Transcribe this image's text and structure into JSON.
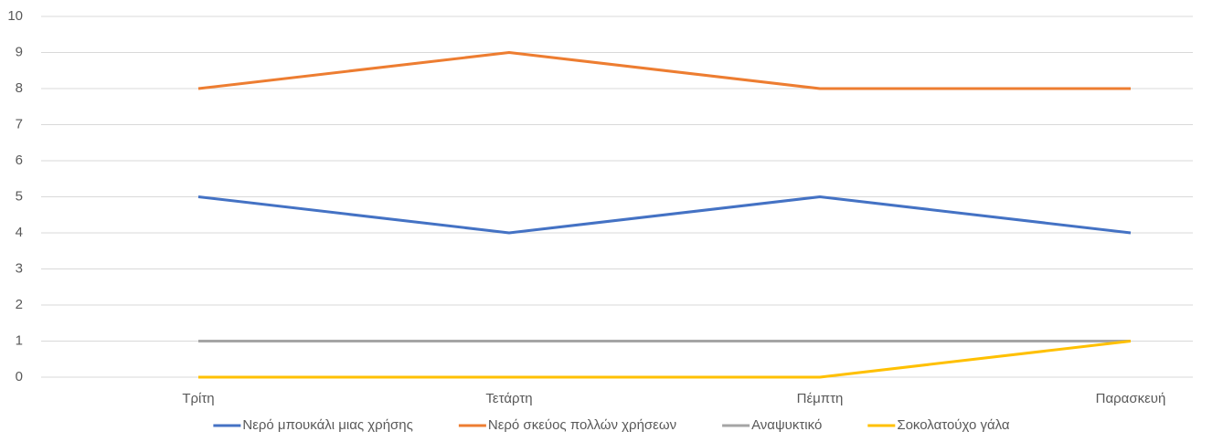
{
  "chart_data": {
    "type": "line",
    "categories": [
      "Τρίτη",
      "Τετάρτη",
      "Πέμπτη",
      "Παρασκευή"
    ],
    "series": [
      {
        "name": "Νερό μπουκάλι μιας χρήσης",
        "color": "#4472c4",
        "values": [
          5,
          4,
          5,
          4
        ]
      },
      {
        "name": "Νερό σκεύος πολλών χρήσεων",
        "color": "#ed7d31",
        "values": [
          8,
          9,
          8,
          8
        ]
      },
      {
        "name": "Αναψυκτικό",
        "color": "#a5a5a5",
        "values": [
          1,
          1,
          1,
          1
        ]
      },
      {
        "name": "Σοκολατούχο γάλα",
        "color": "#ffc000",
        "values": [
          0,
          0,
          0,
          1
        ]
      }
    ],
    "ylim": [
      0,
      10
    ],
    "yticks": [
      0,
      1,
      2,
      3,
      4,
      5,
      6,
      7,
      8,
      9,
      10
    ],
    "grid": true,
    "legend": "bottom"
  }
}
